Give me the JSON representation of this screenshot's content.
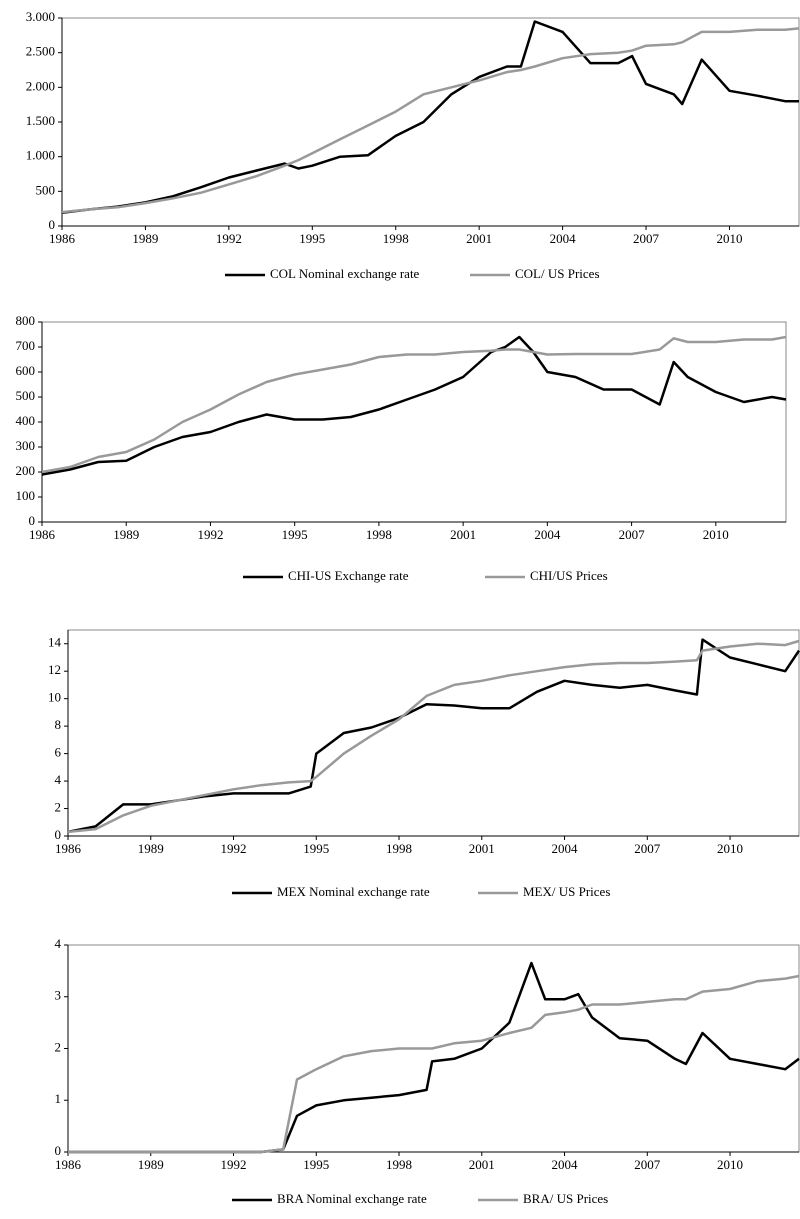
{
  "chart_data": [
    {
      "type": "line",
      "xlim": [
        1986,
        2012.5
      ],
      "xticks": [
        1986,
        1989,
        1992,
        1995,
        1998,
        2001,
        2004,
        2007,
        2010
      ],
      "ylim": [
        0,
        3000
      ],
      "yticks": [
        0,
        500,
        {
          "value": 1000,
          "label": "1.000"
        },
        {
          "value": 1500,
          "label": "1.500"
        },
        {
          "value": 2000,
          "label": "2.000"
        },
        {
          "value": 2500,
          "label": "2.500"
        },
        {
          "value": 3000,
          "label": "3.000"
        }
      ],
      "x": [
        1986,
        1987,
        1988,
        1989,
        1990,
        1991,
        1992,
        1993,
        1994,
        1994.5,
        1995,
        1996,
        1997,
        1998,
        1999,
        2000,
        2001,
        2002,
        2002.5,
        2003,
        2004,
        2005,
        2006,
        2006.5,
        2007,
        2008,
        2008.3,
        2009,
        2010,
        2011,
        2012,
        2012.5
      ],
      "series": [
        {
          "name": "COL Nominal exchange rate",
          "color": "#000000",
          "values": [
            190,
            240,
            280,
            340,
            430,
            560,
            700,
            800,
            900,
            830,
            870,
            1000,
            1020,
            1300,
            1500,
            1900,
            2150,
            2300,
            2300,
            2950,
            2800,
            2350,
            2350,
            2450,
            2050,
            1900,
            1760,
            2400,
            1950,
            1880,
            1800,
            1800
          ]
        },
        {
          "name": "COL/ US Prices",
          "color": "#999999",
          "values": [
            200,
            240,
            270,
            330,
            400,
            480,
            600,
            720,
            870,
            950,
            1050,
            1250,
            1450,
            1650,
            1900,
            2000,
            2100,
            2220,
            2250,
            2300,
            2420,
            2480,
            2500,
            2530,
            2600,
            2620,
            2650,
            2800,
            2800,
            2830,
            2830,
            2850
          ]
        }
      ]
    },
    {
      "type": "line",
      "xlim": [
        1986,
        2012.5
      ],
      "xticks": [
        1986,
        1989,
        1992,
        1995,
        1998,
        2001,
        2004,
        2007,
        2010
      ],
      "ylim": [
        0,
        800
      ],
      "yticks": [
        0,
        100,
        200,
        300,
        400,
        500,
        600,
        700,
        800
      ],
      "x": [
        1986,
        1987,
        1988,
        1989,
        1990,
        1991,
        1992,
        1993,
        1994,
        1995,
        1996,
        1997,
        1998,
        1999,
        2000,
        2001,
        2002,
        2002.5,
        2003,
        2003.5,
        2004,
        2005,
        2006,
        2007,
        2008,
        2008.5,
        2009,
        2010,
        2011,
        2012,
        2012.5
      ],
      "series": [
        {
          "name": "CHI-US Exchange rate",
          "color": "#000000",
          "values": [
            190,
            210,
            240,
            245,
            300,
            340,
            360,
            400,
            430,
            410,
            410,
            420,
            450,
            490,
            530,
            580,
            680,
            700,
            740,
            680,
            600,
            580,
            530,
            530,
            470,
            640,
            580,
            520,
            480,
            500,
            490
          ]
        },
        {
          "name": "CHI/US Prices",
          "color": "#999999",
          "values": [
            200,
            220,
            260,
            280,
            330,
            400,
            450,
            510,
            560,
            590,
            610,
            630,
            660,
            670,
            670,
            680,
            685,
            690,
            690,
            680,
            670,
            672,
            672,
            672,
            690,
            735,
            720,
            720,
            730,
            730,
            740
          ]
        }
      ]
    },
    {
      "type": "line",
      "xlim": [
        1986,
        2012.5
      ],
      "xticks": [
        1986,
        1989,
        1992,
        1995,
        1998,
        2001,
        2004,
        2007,
        2010
      ],
      "ylim": [
        0,
        15
      ],
      "yticks": [
        0,
        2,
        4,
        6,
        8,
        10,
        12,
        14
      ],
      "x": [
        1986,
        1987,
        1988,
        1989,
        1990,
        1991,
        1992,
        1993,
        1994,
        1994.8,
        1995,
        1996,
        1997,
        1998,
        1999,
        2000,
        2001,
        2002,
        2003,
        2004,
        2005,
        2006,
        2007,
        2008,
        2008.8,
        2009,
        2010,
        2011,
        2012,
        2012.5
      ],
      "series": [
        {
          "name": "MEX Nominal exchange rate",
          "color": "#000000",
          "values": [
            0.3,
            0.7,
            2.3,
            2.3,
            2.6,
            2.9,
            3.1,
            3.1,
            3.1,
            3.6,
            6.0,
            7.5,
            7.9,
            8.6,
            9.6,
            9.5,
            9.3,
            9.3,
            10.5,
            11.3,
            11.0,
            10.8,
            11.0,
            10.6,
            10.3,
            14.3,
            13,
            12.5,
            12.0,
            13.5
          ]
        },
        {
          "name": "MEX/ US Prices",
          "color": "#999999",
          "values": [
            0.3,
            0.5,
            1.5,
            2.2,
            2.6,
            3.0,
            3.4,
            3.7,
            3.9,
            4.0,
            4.3,
            6.0,
            7.3,
            8.5,
            10.2,
            11.0,
            11.3,
            11.7,
            12.0,
            12.3,
            12.5,
            12.6,
            12.6,
            12.7,
            12.8,
            13.5,
            13.8,
            14.0,
            13.9,
            14.2
          ]
        }
      ]
    },
    {
      "type": "line",
      "xlim": [
        1986,
        2012.5
      ],
      "xticks": [
        1986,
        1989,
        1992,
        1995,
        1998,
        2001,
        2004,
        2007,
        2010
      ],
      "ylim": [
        0,
        4
      ],
      "yticks": [
        0,
        1,
        2,
        3,
        4
      ],
      "x": [
        1986,
        1993,
        1993.8,
        1994.3,
        1995,
        1996,
        1997,
        1998,
        1999,
        1999.2,
        2000,
        2001,
        2002,
        2002.8,
        2003.3,
        2004,
        2004.5,
        2005,
        2006,
        2007,
        2008,
        2008.4,
        2009,
        2010,
        2011,
        2012,
        2012.5
      ],
      "series": [
        {
          "name": "BRA Nominal exchange rate",
          "color": "#000000",
          "values": [
            0,
            0,
            0.05,
            0.7,
            0.9,
            1.0,
            1.05,
            1.1,
            1.2,
            1.75,
            1.8,
            2.0,
            2.5,
            3.65,
            2.95,
            2.95,
            3.05,
            2.6,
            2.2,
            2.15,
            1.8,
            1.7,
            2.3,
            1.8,
            1.7,
            1.6,
            1.8
          ]
        },
        {
          "name": "BRA/ US Prices",
          "color": "#999999",
          "values": [
            0,
            0,
            0.05,
            1.4,
            1.6,
            1.85,
            1.95,
            2.0,
            2.0,
            2.0,
            2.1,
            2.15,
            2.3,
            2.4,
            2.65,
            2.7,
            2.75,
            2.85,
            2.85,
            2.9,
            2.95,
            2.95,
            3.1,
            3.15,
            3.3,
            3.35,
            3.4
          ]
        }
      ]
    }
  ]
}
